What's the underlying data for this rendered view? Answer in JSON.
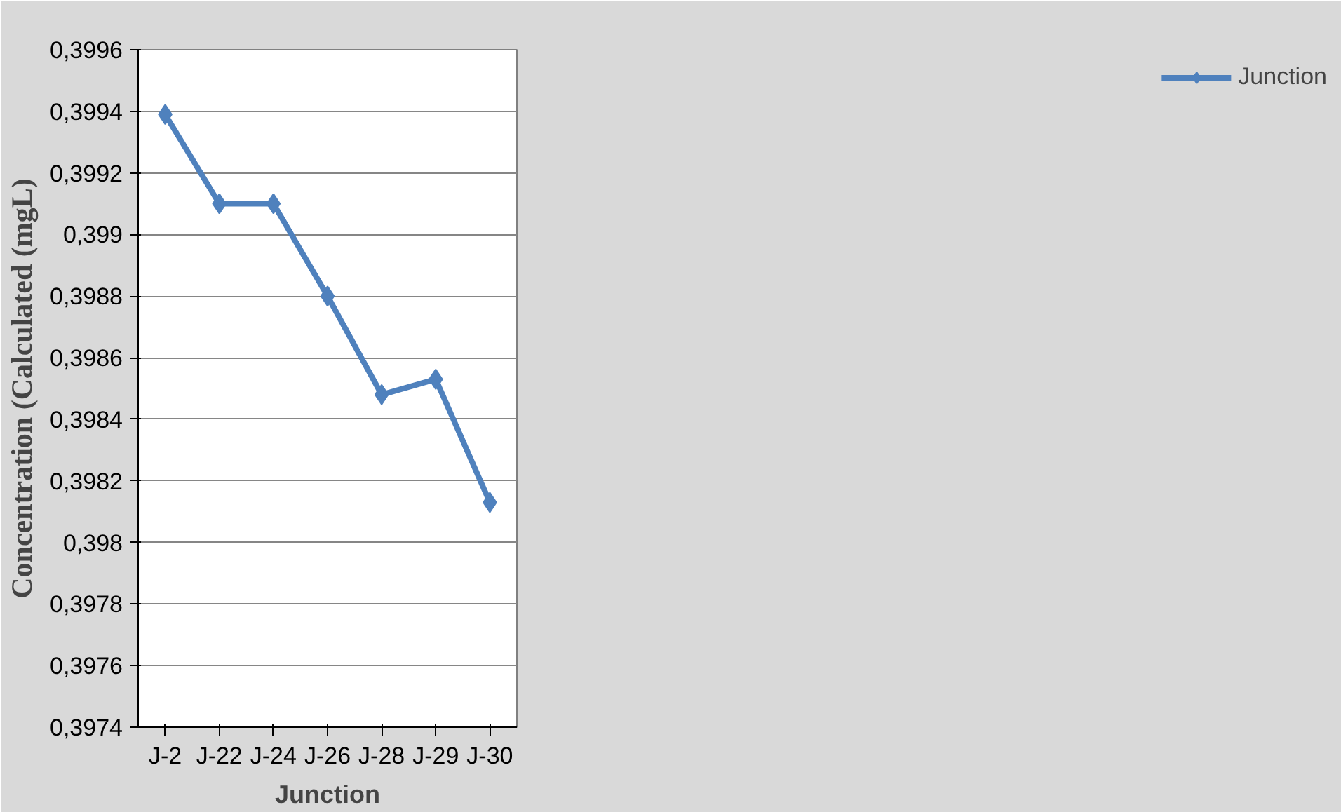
{
  "chart_data": {
    "type": "line",
    "xlabel": "Junction",
    "ylabel": "Concentration (Calculated (mgL)",
    "categories": [
      "J-2",
      "J-22",
      "J-24",
      "J-26",
      "J-28",
      "J-29",
      "J-30"
    ],
    "series": [
      {
        "name": "Junction",
        "color": "#4f81bd",
        "values": [
          0.39939,
          0.3991,
          0.3991,
          0.3988,
          0.39848,
          0.39853,
          0.39813
        ]
      }
    ],
    "ylim": [
      0.3974,
      0.3996
    ],
    "yticks": [
      {
        "value": 0.3974,
        "label": "0,3974"
      },
      {
        "value": 0.3976,
        "label": "0,3976"
      },
      {
        "value": 0.3978,
        "label": "0,3978"
      },
      {
        "value": 0.398,
        "label": "0,398"
      },
      {
        "value": 0.3982,
        "label": "0,3982"
      },
      {
        "value": 0.3984,
        "label": "0,3984"
      },
      {
        "value": 0.3986,
        "label": "0,3986"
      },
      {
        "value": 0.3988,
        "label": "0,3988"
      },
      {
        "value": 0.399,
        "label": "0,399"
      },
      {
        "value": 0.3992,
        "label": "0,3992"
      },
      {
        "value": 0.3994,
        "label": "0,3994"
      },
      {
        "value": 0.3996,
        "label": "0,3996"
      }
    ],
    "grid": "y",
    "legend": "right",
    "marker": "diamond",
    "line_style": "solid"
  }
}
